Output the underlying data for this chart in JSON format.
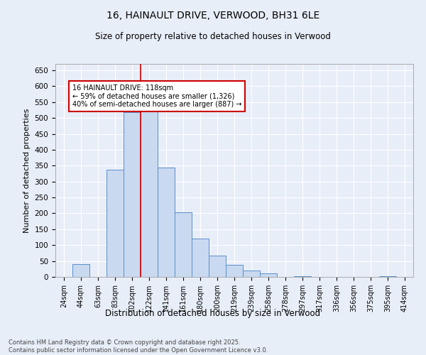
{
  "title1": "16, HAINAULT DRIVE, VERWOOD, BH31 6LE",
  "title2": "Size of property relative to detached houses in Verwood",
  "xlabel": "Distribution of detached houses by size in Verwood",
  "ylabel": "Number of detached properties",
  "bin_labels": [
    "24sqm",
    "44sqm",
    "63sqm",
    "83sqm",
    "102sqm",
    "122sqm",
    "141sqm",
    "161sqm",
    "180sqm",
    "200sqm",
    "219sqm",
    "239sqm",
    "258sqm",
    "278sqm",
    "297sqm",
    "317sqm",
    "336sqm",
    "356sqm",
    "375sqm",
    "395sqm",
    "414sqm"
  ],
  "bar_values": [
    0,
    41,
    0,
    338,
    519,
    540,
    345,
    204,
    120,
    68,
    38,
    19,
    11,
    0,
    3,
    0,
    0,
    0,
    0,
    2,
    0
  ],
  "bar_color": "#c9d9f0",
  "bar_edgecolor": "#5b8fc9",
  "vline_color": "#cc0000",
  "annotation_title": "16 HAINAULT DRIVE: 118sqm",
  "annotation_line1": "← 59% of detached houses are smaller (1,326)",
  "annotation_line2": "40% of semi-detached houses are larger (887) →",
  "annotation_box_color": "#cc0000",
  "ylim": [
    0,
    670
  ],
  "yticks": [
    0,
    50,
    100,
    150,
    200,
    250,
    300,
    350,
    400,
    450,
    500,
    550,
    600,
    650
  ],
  "footer1": "Contains HM Land Registry data © Crown copyright and database right 2025.",
  "footer2": "Contains public sector information licensed under the Open Government Licence v3.0.",
  "bg_color": "#e8eef8",
  "plot_bg_color": "#e8eef8"
}
